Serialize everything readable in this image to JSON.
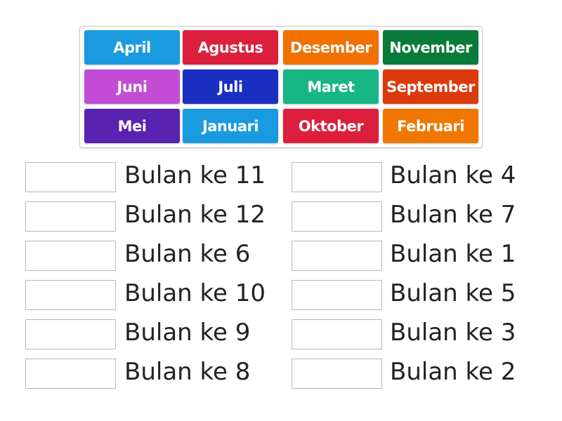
{
  "tiles": [
    {
      "label": "April",
      "color": "#1a9be0"
    },
    {
      "label": "Agustus",
      "color": "#dc1f3c"
    },
    {
      "label": "Desember",
      "color": "#f07000"
    },
    {
      "label": "November",
      "color": "#087b3a"
    },
    {
      "label": "Juni",
      "color": "#c24dd4"
    },
    {
      "label": "Juli",
      "color": "#1a2ec0"
    },
    {
      "label": "Maret",
      "color": "#18b585"
    },
    {
      "label": "September",
      "color": "#db3a0c"
    },
    {
      "label": "Mei",
      "color": "#5a22b0"
    },
    {
      "label": "Januari",
      "color": "#1a9be0"
    },
    {
      "label": "Oktober",
      "color": "#dc1f3c"
    },
    {
      "label": "Februari",
      "color": "#f07800"
    }
  ],
  "targets": {
    "left": [
      "Bulan ke 11",
      "Bulan ke 12",
      "Bulan ke 6",
      "Bulan ke 10",
      "Bulan ke 9",
      "Bulan ke 8"
    ],
    "right": [
      "Bulan ke 4",
      "Bulan ke 7",
      "Bulan ke 1",
      "Bulan ke 5",
      "Bulan ke 3",
      "Bulan ke 2"
    ]
  }
}
